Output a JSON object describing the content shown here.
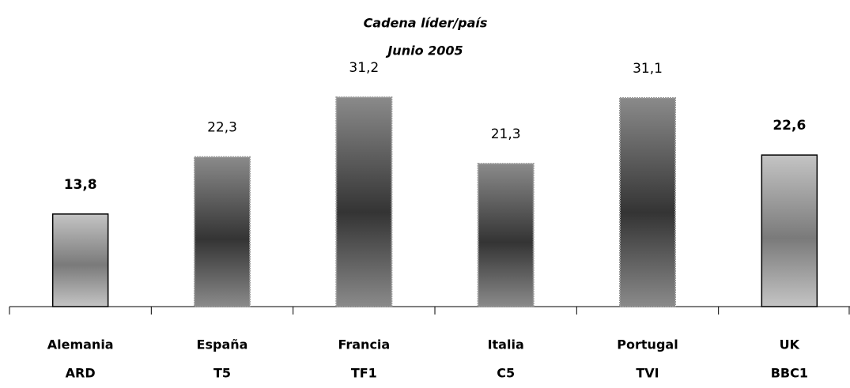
{
  "chart_data": {
    "type": "bar",
    "title": "Cadena líder/país",
    "subtitle": "Junio 2005",
    "categories": [
      [
        "Alemania",
        "ARD"
      ],
      [
        "España",
        "T5"
      ],
      [
        "Francia",
        "TF1"
      ],
      [
        "Italia",
        "C5"
      ],
      [
        "Portugal",
        "TVI"
      ],
      [
        "UK",
        "BBC1"
      ]
    ],
    "values": [
      13.8,
      22.3,
      31.2,
      21.3,
      31.1,
      22.6
    ],
    "value_labels": [
      "13,8",
      "22,3",
      "31,2",
      "21,3",
      "31,1",
      "22,6"
    ],
    "colors": [
      "#c4c4c4",
      "#8a8a8a",
      "#8a8a8a",
      "#8a8a8a",
      "#8a8a8a",
      "#c4c4c4"
    ],
    "ylim": [
      0,
      45
    ]
  }
}
